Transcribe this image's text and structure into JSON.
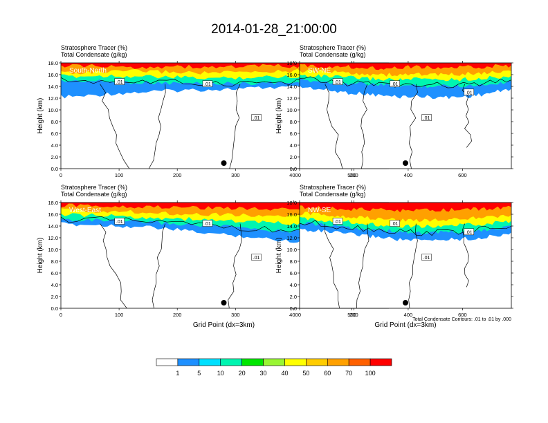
{
  "title": "2014-01-28_21:00:00",
  "left_label_1": "Stratosphere Tracer",
  "left_unit_1": "(%)",
  "left_label_2": "Total Condensate",
  "left_unit_2": "(g/kg)",
  "footnote": "Total Condensate Contours: .01 to .01 by .000",
  "contour_label": ".01",
  "colors": {
    "ramp": [
      "#ffffff",
      "#1e90ff",
      "#00e0ff",
      "#00f5b0",
      "#00e600",
      "#99f533",
      "#ffff00",
      "#ffcc00",
      "#ffa000",
      "#ff6000",
      "#ff0000"
    ],
    "contour": "#000000"
  },
  "chart_data": [
    {
      "type": "heatmap",
      "panel_label": "South-North",
      "xlabel": "",
      "ylabel": "Height (km)",
      "xlim": [
        0,
        560
      ],
      "ylim": [
        0,
        18
      ],
      "x_ticks": [
        0,
        100,
        200,
        300,
        400,
        500
      ],
      "y_ticks": [
        "0.0",
        "2.0",
        "4.0",
        "6.0",
        "8.0",
        "10.0",
        "12.0",
        "14.0",
        "16.0",
        "18.0"
      ],
      "marker_x": 280,
      "tracer_boundaries": {
        "x": [
          0,
          40,
          80,
          120,
          160,
          200,
          240,
          280,
          320,
          360,
          400,
          440,
          480,
          520,
          560
        ],
        "c1": [
          12.3,
          12.4,
          12.8,
          13.0,
          13.2,
          13.4,
          13.5,
          13.6,
          13.7,
          13.9,
          13.9,
          13.8,
          13.6,
          13.2,
          12.8
        ],
        "c20": [
          15.0,
          15.0,
          14.9,
          14.8,
          14.7,
          14.6,
          14.6,
          14.6,
          14.6,
          14.7,
          14.7,
          14.8,
          14.8,
          14.8,
          14.8
        ],
        "c50": [
          15.8,
          15.8,
          15.9,
          15.8,
          15.7,
          15.6,
          15.5,
          15.5,
          15.6,
          15.7,
          15.8,
          15.8,
          15.9,
          15.9,
          16.0
        ],
        "c70": [
          16.5,
          16.4,
          16.5,
          16.7,
          16.6,
          16.5,
          16.4,
          16.4,
          16.5,
          16.6,
          16.7,
          16.8,
          16.8,
          16.9,
          17.0
        ],
        "c100": [
          17.5,
          17.6,
          17.4,
          17.3,
          17.4,
          17.5,
          17.3,
          17.4,
          17.5,
          17.6,
          17.5,
          17.4,
          17.5,
          17.6,
          17.7
        ]
      }
    },
    {
      "type": "heatmap",
      "panel_label": "SW-NE",
      "xlabel": "",
      "ylabel": "Height (km)",
      "xlim": [
        0,
        780
      ],
      "ylim": [
        0,
        18
      ],
      "x_ticks": [
        0,
        200,
        400,
        600
      ],
      "y_ticks": [
        "0.0",
        "2.0",
        "4.0",
        "6.0",
        "8.0",
        "10.0",
        "12.0",
        "14.0",
        "16.0",
        "18.0"
      ],
      "marker_x": 390,
      "tracer_boundaries": {
        "x": [
          0,
          60,
          120,
          180,
          240,
          300,
          360,
          420,
          480,
          540,
          600,
          660,
          720,
          780
        ],
        "c1": [
          14.0,
          13.7,
          13.3,
          13.0,
          12.8,
          12.5,
          12.3,
          12.4,
          12.3,
          12.2,
          12.3,
          12.6,
          13.1,
          13.6
        ],
        "c20": [
          15.1,
          15.0,
          14.8,
          14.6,
          14.5,
          14.3,
          14.2,
          14.2,
          14.1,
          14.2,
          14.2,
          14.3,
          14.6,
          14.9
        ],
        "c50": [
          15.9,
          15.9,
          15.7,
          15.6,
          15.4,
          15.3,
          15.2,
          15.3,
          15.3,
          15.2,
          15.3,
          15.4,
          15.6,
          15.8
        ],
        "c70": [
          16.6,
          16.6,
          16.5,
          16.4,
          16.2,
          16.1,
          16.0,
          16.2,
          16.1,
          16.0,
          16.2,
          16.3,
          16.5,
          16.6
        ],
        "c100": [
          17.6,
          17.5,
          17.5,
          17.4,
          17.3,
          17.2,
          17.3,
          17.4,
          17.3,
          17.2,
          17.3,
          17.4,
          17.5,
          17.6
        ]
      }
    },
    {
      "type": "heatmap",
      "panel_label": "West-East",
      "xlabel": "Grid Point (dx=3km)",
      "ylabel": "Height (km)",
      "xlim": [
        0,
        560
      ],
      "ylim": [
        0,
        18
      ],
      "x_ticks": [
        0,
        100,
        200,
        300,
        400,
        500
      ],
      "y_ticks": [
        "0.0",
        "2.0",
        "4.0",
        "6.0",
        "8.0",
        "10.0",
        "12.0",
        "14.0",
        "16.0",
        "18.0"
      ],
      "marker_x": 280,
      "tracer_boundaries": {
        "x": [
          0,
          40,
          80,
          120,
          160,
          200,
          240,
          280,
          320,
          360,
          400,
          440,
          480,
          520,
          560
        ],
        "c1": [
          14.4,
          14.3,
          14.2,
          14.0,
          13.8,
          13.4,
          13.0,
          12.6,
          12.3,
          11.8,
          11.5,
          11.8,
          11.6,
          11.8,
          12.4
        ],
        "c20": [
          15.2,
          15.1,
          15.0,
          14.8,
          14.7,
          14.4,
          14.2,
          14.0,
          13.7,
          13.3,
          13.2,
          13.3,
          13.1,
          13.4,
          13.8
        ],
        "c50": [
          16.0,
          15.9,
          15.8,
          15.6,
          15.5,
          15.3,
          15.2,
          15.0,
          14.8,
          14.6,
          14.5,
          14.6,
          14.5,
          14.7,
          15.0
        ],
        "c70": [
          16.8,
          16.7,
          16.6,
          16.5,
          16.4,
          16.2,
          16.1,
          16.0,
          15.9,
          15.8,
          15.7,
          15.8,
          15.8,
          15.9,
          16.1
        ],
        "c100": [
          17.6,
          17.5,
          17.5,
          17.4,
          17.3,
          17.3,
          17.2,
          17.2,
          17.1,
          17.0,
          17.0,
          17.1,
          17.1,
          17.2,
          17.4
        ]
      }
    },
    {
      "type": "heatmap",
      "panel_label": "NW-SE",
      "xlabel": "Grid Point (dx=3km)",
      "ylabel": "Height (km)",
      "xlim": [
        0,
        780
      ],
      "ylim": [
        0,
        18
      ],
      "x_ticks": [
        0,
        200,
        400,
        600
      ],
      "y_ticks": [
        "0.0",
        "2.0",
        "4.0",
        "6.0",
        "8.0",
        "10.0",
        "12.0",
        "14.0",
        "16.0",
        "18.0"
      ],
      "marker_x": 390,
      "tracer_boundaries": {
        "x": [
          0,
          60,
          120,
          180,
          240,
          300,
          360,
          420,
          480,
          540,
          600,
          660,
          720,
          780
        ],
        "c1": [
          13.5,
          13.3,
          13.0,
          12.7,
          12.4,
          12.2,
          11.8,
          11.6,
          11.6,
          11.8,
          11.9,
          12.0,
          12.4,
          12.9
        ],
        "c20": [
          14.5,
          14.4,
          14.1,
          13.9,
          13.6,
          13.4,
          13.1,
          12.9,
          12.9,
          13.0,
          13.1,
          13.3,
          13.6,
          14.0
        ],
        "c50": [
          15.3,
          15.2,
          15.0,
          14.8,
          14.5,
          14.3,
          14.1,
          14.0,
          14.0,
          14.1,
          14.2,
          14.4,
          14.6,
          14.9
        ],
        "c70": [
          16.2,
          16.1,
          15.9,
          15.7,
          15.5,
          15.3,
          15.1,
          15.1,
          15.1,
          15.2,
          15.3,
          15.5,
          15.7,
          15.9
        ],
        "c100": [
          17.3,
          17.2,
          17.1,
          17.0,
          16.9,
          16.8,
          16.7,
          16.7,
          16.7,
          16.8,
          16.9,
          17.0,
          17.1,
          17.2
        ]
      }
    }
  ],
  "colorbar": {
    "labels": [
      "1",
      "5",
      "10",
      "20",
      "30",
      "40",
      "50",
      "60",
      "70",
      "100"
    ]
  }
}
